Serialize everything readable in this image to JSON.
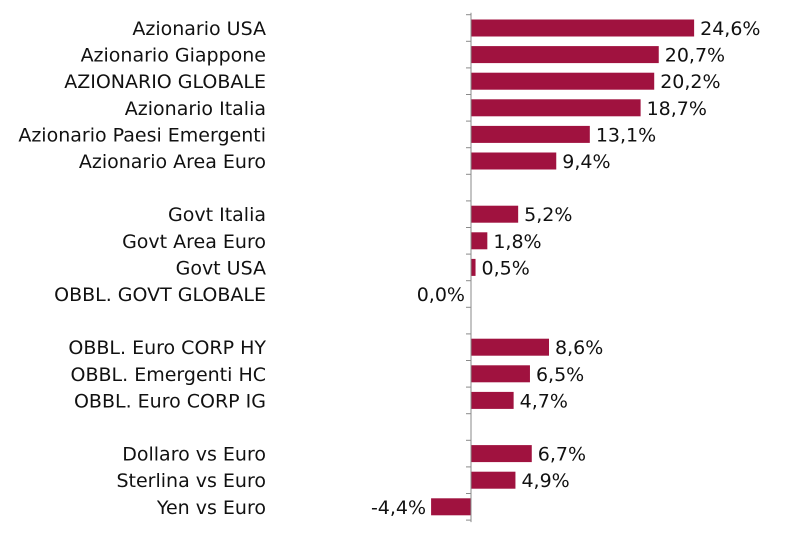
{
  "chart_data": {
    "type": "bar",
    "orientation": "horizontal",
    "categories": [
      "Azionario USA",
      "Azionario Giappone",
      "AZIONARIO GLOBALE",
      "Azionario Italia",
      "Azionario Paesi Emergenti",
      "Azionario Area Euro",
      "",
      "Govt Italia",
      "Govt Area Euro",
      "Govt USA",
      "OBBL. GOVT GLOBALE",
      "",
      "OBBL. Euro CORP HY",
      "OBBL. Emergenti HC",
      "OBBL. Euro CORP IG",
      "",
      "Dollaro vs Euro",
      "Sterlina vs Euro",
      "Yen vs Euro"
    ],
    "values": [
      24.6,
      20.7,
      20.2,
      18.7,
      13.1,
      9.4,
      null,
      5.2,
      1.8,
      0.5,
      0.0,
      null,
      8.6,
      6.5,
      4.7,
      null,
      6.7,
      4.9,
      -4.4
    ],
    "value_labels": [
      "24,6%",
      "20,7%",
      "20,2%",
      "18,7%",
      "13,1%",
      "9,4%",
      "",
      "5,2%",
      "1,8%",
      "0,5%",
      "0,0%",
      "",
      "8,6%",
      "6,5%",
      "4,7%",
      "",
      "6,7%",
      "4,9%",
      "-4,4%"
    ],
    "unit": "%",
    "title": "",
    "xlabel": "",
    "ylabel": "",
    "grid": false,
    "legend": "none",
    "bar_color": "#a0123f"
  }
}
